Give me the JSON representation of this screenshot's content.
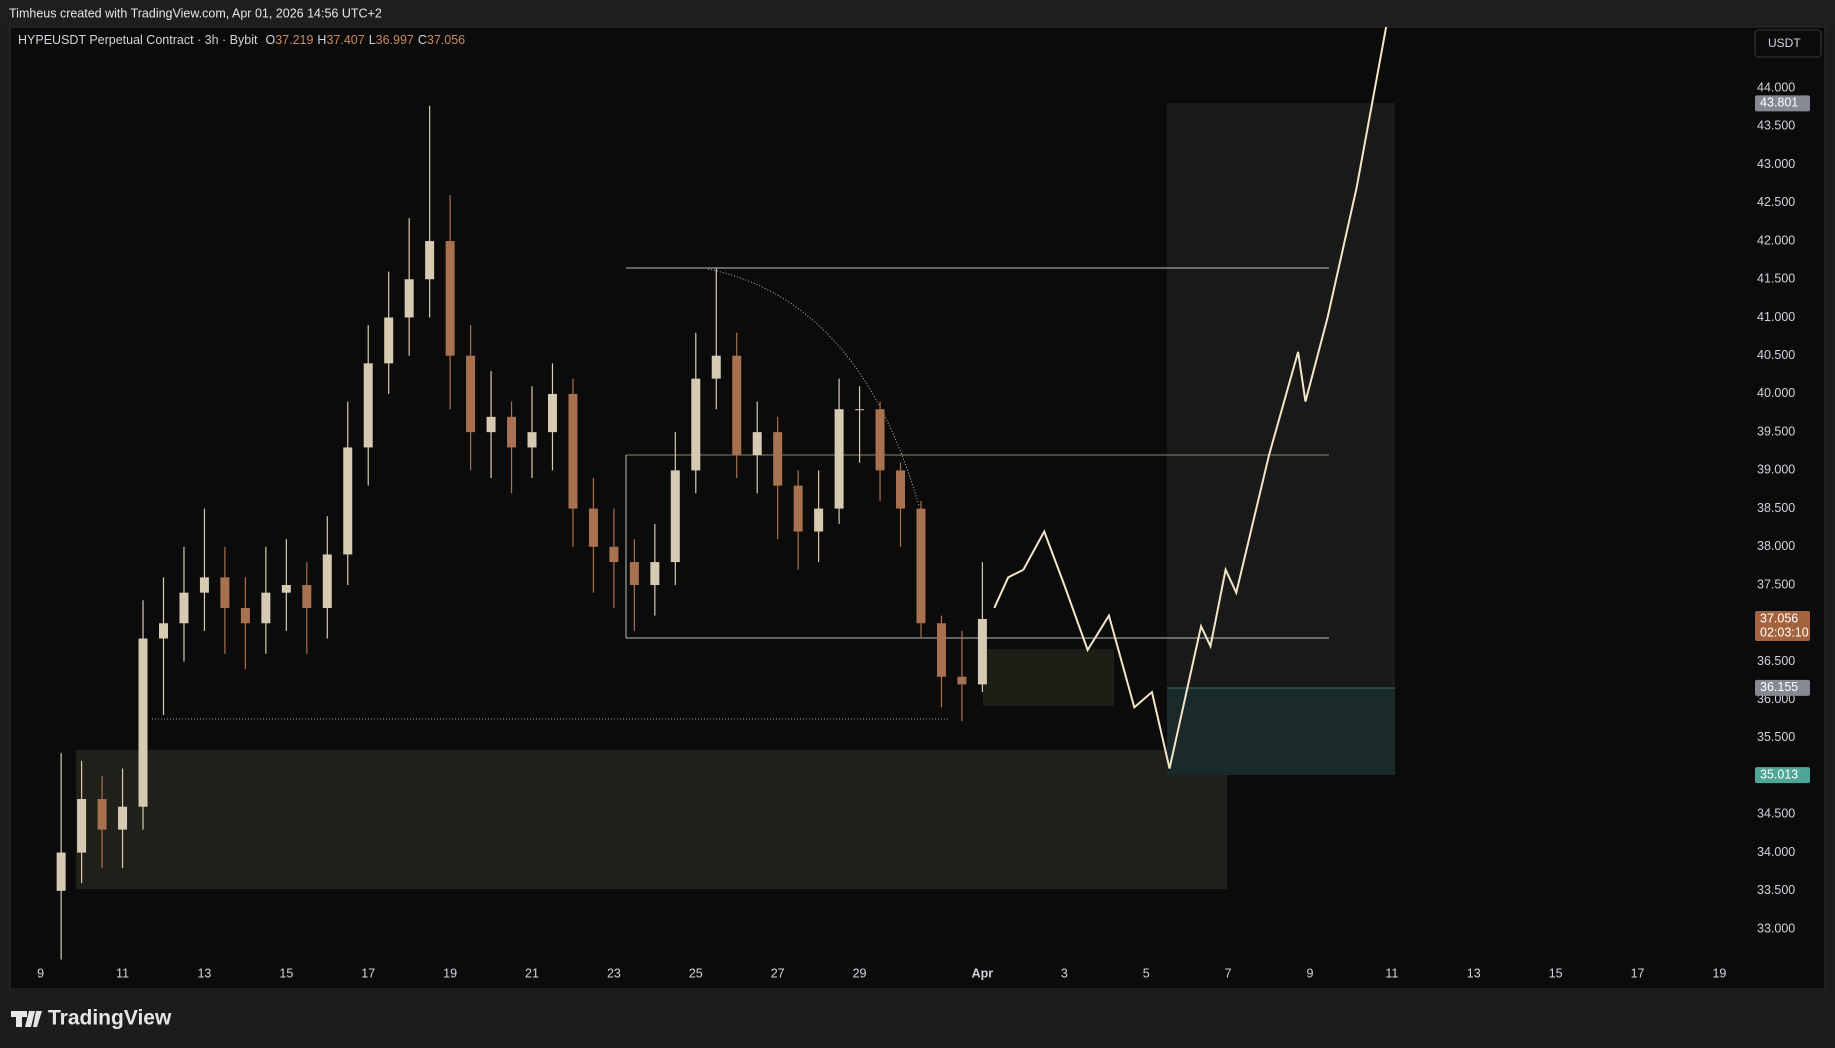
{
  "header": {
    "credit": "Timheus created with TradingView.com, Apr 01, 2026 14:56 UTC+2"
  },
  "chart_data": {
    "type": "candlestick",
    "title": "HYPEUSDT Perpetual Contract · 3h · Bybit",
    "currency": "USDT",
    "ohlc_legend": [
      {
        "label": "O",
        "value": 37.219
      },
      {
        "label": "H",
        "value": 37.407
      },
      {
        "label": "L",
        "value": 36.997
      },
      {
        "label": "C",
        "value": 37.056
      }
    ],
    "up_color": "#d6cab2",
    "down_color": "#a8714f",
    "x": [
      9.5,
      10,
      10.5,
      11,
      11.5,
      12,
      12.5,
      13,
      13.5,
      14,
      14.5,
      15,
      15.5,
      16,
      16.5,
      17,
      17.5,
      18,
      18.5,
      19,
      19.5,
      20,
      20.5,
      21,
      21.5,
      22,
      22.5,
      23,
      23.5,
      24,
      24.5,
      25,
      25.5,
      26,
      26.5,
      27,
      27.5,
      28,
      28.5,
      29,
      29.5,
      30,
      30.5,
      31,
      31.5,
      32
    ],
    "open": [
      33.5,
      34.0,
      34.7,
      34.3,
      34.6,
      36.8,
      37.0,
      37.4,
      37.6,
      37.2,
      37.0,
      37.4,
      37.5,
      37.2,
      37.9,
      39.3,
      40.4,
      41.0,
      41.5,
      42.0,
      40.5,
      39.5,
      39.7,
      39.3,
      39.5,
      40.0,
      38.5,
      38.0,
      37.8,
      37.5,
      37.8,
      39.0,
      40.2,
      40.5,
      39.2,
      39.5,
      38.8,
      38.2,
      38.5,
      39.8,
      39.8,
      39.0,
      38.5,
      37.0,
      36.3,
      36.2
    ],
    "high": [
      35.3,
      35.2,
      35.0,
      35.1,
      37.3,
      37.6,
      38.0,
      38.5,
      38.0,
      37.6,
      38.0,
      38.1,
      37.8,
      38.4,
      39.9,
      40.9,
      41.6,
      42.3,
      43.77,
      42.6,
      40.9,
      40.3,
      39.9,
      40.1,
      40.4,
      40.2,
      38.9,
      38.5,
      38.1,
      38.3,
      39.5,
      40.8,
      41.65,
      40.8,
      39.9,
      39.7,
      39.0,
      39.0,
      40.2,
      40.1,
      39.9,
      39.1,
      38.6,
      37.1,
      36.9,
      37.8
    ],
    "low": [
      32.6,
      33.6,
      33.8,
      33.8,
      34.3,
      35.8,
      36.5,
      36.9,
      36.6,
      36.4,
      36.6,
      36.9,
      36.6,
      36.8,
      37.5,
      38.8,
      40.0,
      40.5,
      41.0,
      39.8,
      39.0,
      38.9,
      38.7,
      38.9,
      39.0,
      38.0,
      37.4,
      37.2,
      36.9,
      37.1,
      37.5,
      38.7,
      39.8,
      38.9,
      38.7,
      38.1,
      37.7,
      37.8,
      38.3,
      39.1,
      38.6,
      38.0,
      36.8,
      35.9,
      35.72,
      36.1
    ],
    "close": [
      34.0,
      34.7,
      34.3,
      34.6,
      36.8,
      37.0,
      37.4,
      37.6,
      37.2,
      37.0,
      37.4,
      37.5,
      37.2,
      37.9,
      39.3,
      40.4,
      41.0,
      41.5,
      42.0,
      40.5,
      39.5,
      39.7,
      39.3,
      39.5,
      40.0,
      38.5,
      38.0,
      37.8,
      37.5,
      37.8,
      39.0,
      40.2,
      40.5,
      39.2,
      39.5,
      38.8,
      38.2,
      38.5,
      39.8,
      39.8,
      39.0,
      38.5,
      37.0,
      36.3,
      36.2,
      37.056
    ],
    "projection": {
      "color": "#f3e6c8",
      "x": [
        32.29,
        32.63,
        33.0,
        33.51,
        34.0,
        34.57,
        35.09,
        35.71,
        36.14,
        36.57,
        37.34,
        37.57,
        37.94,
        38.2,
        39.0,
        39.71,
        39.89,
        40.43,
        41.14,
        41.86
      ],
      "values": [
        37.2,
        37.6,
        37.7,
        38.2,
        37.5,
        36.65,
        37.1,
        35.9,
        36.1,
        35.1,
        36.96,
        36.7,
        37.7,
        37.4,
        39.2,
        40.55,
        39.9,
        41.0,
        42.7,
        44.8
      ]
    },
    "price_labels": [
      {
        "value": 43.801,
        "color": "#868993"
      },
      {
        "value": 37.056,
        "color": "#a4633f",
        "countdown": "02:03:10"
      },
      {
        "value": 36.155,
        "color": "#868993"
      },
      {
        "value": 35.013,
        "color": "#4fa596"
      }
    ],
    "xlim": [
      8.3,
      50.6
    ],
    "xticks": [
      9,
      11,
      13,
      15,
      17,
      19,
      21,
      23,
      25,
      27,
      29,
      {
        "value": 32,
        "label": "Apr"
      },
      {
        "value": 34,
        "label": "3"
      },
      {
        "value": 36,
        "label": "5"
      },
      {
        "value": 38,
        "label": "7"
      },
      {
        "value": 40,
        "label": "9"
      },
      {
        "value": 42,
        "label": "11"
      },
      {
        "value": 44,
        "label": "13"
      },
      {
        "value": 46,
        "label": "15"
      },
      {
        "value": 48,
        "label": "17"
      },
      {
        "value": 50,
        "label": "19"
      }
    ],
    "ylim": [
      32.66,
      44.8
    ],
    "yticks": [
      {
        "value": 33,
        "label": "33.000"
      },
      {
        "value": 33.5,
        "label": "33.500"
      },
      {
        "value": 34,
        "label": "34.000"
      },
      {
        "value": 34.5,
        "label": "34.500"
      },
      {
        "value": 35,
        "label": "35.000"
      },
      {
        "value": 35.5,
        "label": "35.500"
      },
      {
        "value": 36,
        "label": "36.000"
      },
      {
        "value": 36.5,
        "label": "36.500"
      },
      {
        "value": 37,
        "label": "37.000"
      },
      {
        "value": 37.5,
        "label": "37.500"
      },
      {
        "value": 38,
        "label": "38.000"
      },
      {
        "value": 38.5,
        "label": "38.500"
      },
      {
        "value": 39,
        "label": "39.000"
      },
      {
        "value": 39.5,
        "label": "39.500"
      },
      {
        "value": 40,
        "label": "40.000"
      },
      {
        "value": 40.5,
        "label": "40.500"
      },
      {
        "value": 41,
        "label": "41.000"
      },
      {
        "value": 41.5,
        "label": "41.500"
      },
      {
        "value": 42,
        "label": "42.000"
      },
      {
        "value": 42.5,
        "label": "42.500"
      },
      {
        "value": 43,
        "label": "43.000"
      },
      {
        "value": 43.5,
        "label": "43.500"
      },
      {
        "value": 44,
        "label": "44.000"
      }
    ],
    "grid": false
  },
  "footer": {
    "brand": "TradingView"
  }
}
